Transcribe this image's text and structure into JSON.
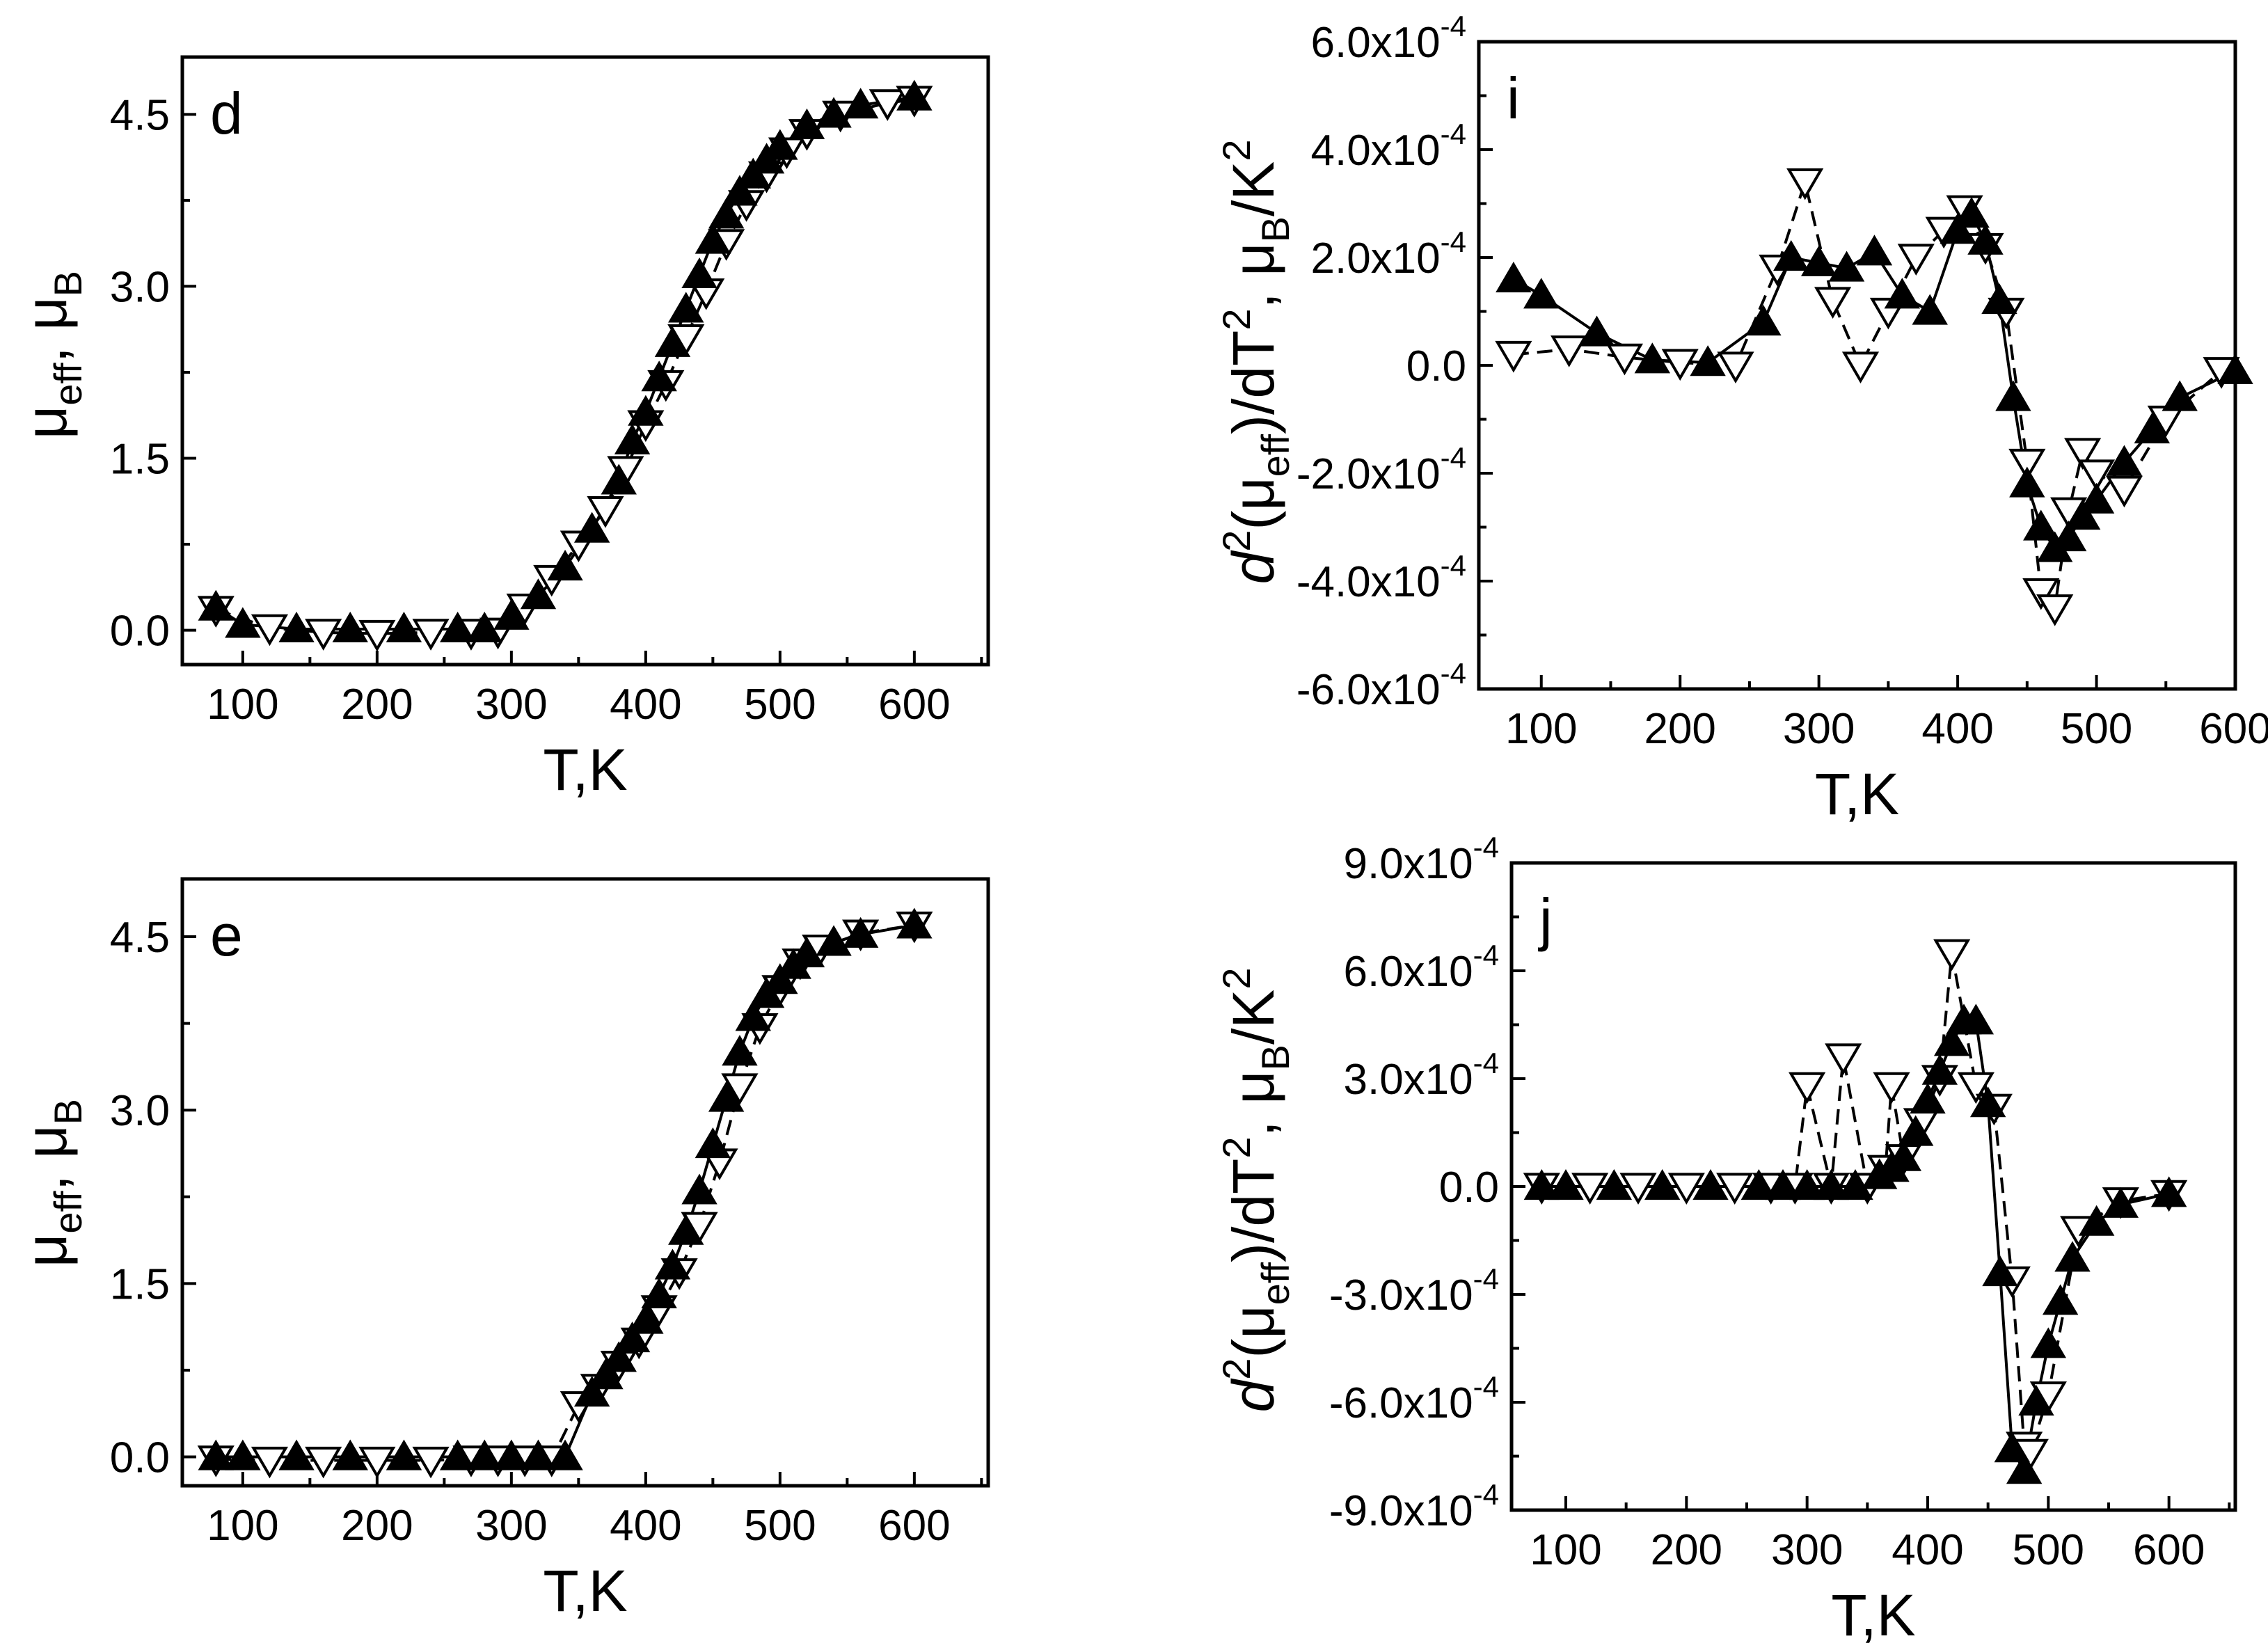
{
  "chart_data": [
    {
      "id": "d",
      "type": "scatter",
      "panel_label": "d",
      "xlabel": "T,K",
      "ylabel_main": "μ",
      "ylabel_sub1": "eff",
      "ylabel_mid": ", μ",
      "ylabel_sub2": "B",
      "xlim": [
        55,
        655
      ],
      "ylim": [
        -0.3,
        5.0
      ],
      "xticks": [
        100,
        200,
        300,
        400,
        500,
        600
      ],
      "yticks": [
        0.0,
        1.5,
        3.0,
        4.5
      ],
      "ytick_labels": [
        "0.0",
        "1.5",
        "3.0",
        "4.5"
      ],
      "series": [
        {
          "name": "filled-up-triangle",
          "x": [
            80,
            100,
            140,
            180,
            220,
            260,
            280,
            300,
            320,
            340,
            360,
            380,
            390,
            400,
            410,
            420,
            430,
            440,
            450,
            460,
            470,
            480,
            490,
            500,
            520,
            540,
            560,
            600
          ],
          "y": [
            0.2,
            0.05,
            0.01,
            0.01,
            0.01,
            0.01,
            0.01,
            0.12,
            0.3,
            0.55,
            0.88,
            1.3,
            1.65,
            1.9,
            2.2,
            2.5,
            2.8,
            3.1,
            3.4,
            3.62,
            3.82,
            3.97,
            4.1,
            4.22,
            4.4,
            4.5,
            4.58,
            4.65
          ]
        },
        {
          "name": "open-down-triangle",
          "x": [
            80,
            120,
            160,
            200,
            240,
            270,
            290,
            310,
            330,
            350,
            370,
            385,
            400,
            415,
            430,
            445,
            460,
            475,
            490,
            505,
            520,
            545,
            580,
            600
          ],
          "y": [
            0.18,
            0.02,
            -0.02,
            -0.03,
            -0.02,
            -0.02,
            -0.01,
            0.2,
            0.45,
            0.75,
            1.05,
            1.4,
            1.8,
            2.15,
            2.55,
            2.95,
            3.38,
            3.72,
            3.97,
            4.18,
            4.34,
            4.5,
            4.6,
            4.63
          ]
        }
      ]
    },
    {
      "id": "e",
      "type": "scatter",
      "panel_label": "e",
      "xlabel": "T,K",
      "ylabel_main": "μ",
      "ylabel_sub1": "eff",
      "ylabel_mid": ", μ",
      "ylabel_sub2": "B",
      "xlim": [
        55,
        655
      ],
      "ylim": [
        -0.25,
        5.0
      ],
      "xticks": [
        100,
        200,
        300,
        400,
        500,
        600
      ],
      "yticks": [
        0.0,
        1.5,
        3.0,
        4.5
      ],
      "ytick_labels": [
        "0.0",
        "1.5",
        "3.0",
        "4.5"
      ],
      "series": [
        {
          "name": "filled-up-triangle",
          "x": [
            80,
            100,
            140,
            180,
            220,
            260,
            280,
            300,
            320,
            340,
            360,
            370,
            380,
            390,
            400,
            410,
            420,
            430,
            440,
            450,
            460,
            470,
            480,
            490,
            500,
            510,
            520,
            540,
            560,
            600
          ],
          "y": [
            0.0,
            0.0,
            0.0,
            0.0,
            0.0,
            0.0,
            0.0,
            0.0,
            0.0,
            0.0,
            0.55,
            0.7,
            0.85,
            1.02,
            1.18,
            1.4,
            1.65,
            1.95,
            2.3,
            2.7,
            3.1,
            3.5,
            3.8,
            4.0,
            4.12,
            4.25,
            4.35,
            4.45,
            4.52,
            4.6
          ]
        },
        {
          "name": "open-down-triangle",
          "x": [
            80,
            120,
            160,
            200,
            240,
            270,
            290,
            310,
            330,
            350,
            365,
            380,
            395,
            410,
            425,
            440,
            455,
            470,
            485,
            500,
            515,
            530,
            560,
            600
          ],
          "y": [
            -0.02,
            -0.03,
            -0.03,
            -0.03,
            -0.03,
            -0.02,
            -0.02,
            -0.02,
            -0.02,
            0.45,
            0.6,
            0.8,
            1.0,
            1.28,
            1.6,
            2.0,
            2.55,
            3.2,
            3.72,
            4.05,
            4.28,
            4.4,
            4.53,
            4.6
          ]
        }
      ]
    },
    {
      "id": "i",
      "type": "scatter",
      "panel_label": "i",
      "xlabel": "T,K",
      "ylabel_parts": {
        "d": "d",
        "sup2a": "2",
        "open": "(μ",
        "sub_eff": "eff",
        "mid": ")/dT",
        "sup2b": "2",
        "mid2": ", μ",
        "sub_b": "B",
        "mid3": "/K",
        "sup2c": "2"
      },
      "xlim": [
        55,
        600
      ],
      "ylim": [
        -6.0,
        6.0
      ],
      "yunit_exp": "-4",
      "xticks": [
        100,
        200,
        300,
        400,
        500,
        600
      ],
      "yticks": [
        -6.0,
        -4.0,
        -2.0,
        0.0,
        2.0,
        4.0,
        6.0
      ],
      "ytick_labels": [
        "-6.0x10",
        "-4.0x10",
        "-2.0x10",
        "0.0",
        "2.0x10",
        "4.0x10",
        "6.0x10"
      ],
      "ytick_exps": [
        "-4",
        "-4",
        "-4",
        "",
        "-4",
        "-4",
        "-4"
      ],
      "series": [
        {
          "name": "filled-up-triangle",
          "x": [
            80,
            100,
            140,
            180,
            220,
            260,
            280,
            300,
            320,
            340,
            360,
            380,
            400,
            410,
            420,
            430,
            440,
            450,
            460,
            470,
            480,
            490,
            500,
            520,
            540,
            560,
            600
          ],
          "y": [
            1.6,
            1.3,
            0.6,
            0.1,
            0.05,
            0.8,
            2.0,
            1.9,
            1.8,
            2.1,
            1.3,
            1.0,
            2.5,
            2.8,
            2.3,
            1.2,
            -0.6,
            -2.2,
            -3.0,
            -3.4,
            -3.2,
            -2.8,
            -2.5,
            -1.8,
            -1.2,
            -0.6,
            -0.1
          ]
        },
        {
          "name": "open-down-triangle",
          "x": [
            80,
            120,
            160,
            200,
            240,
            270,
            290,
            310,
            330,
            350,
            370,
            390,
            405,
            420,
            435,
            450,
            460,
            470,
            480,
            490,
            500,
            520,
            550,
            590
          ],
          "y": [
            0.2,
            0.3,
            0.15,
            0.05,
            0.0,
            1.8,
            3.4,
            1.2,
            0.0,
            1.0,
            2.0,
            2.5,
            2.9,
            2.2,
            1.0,
            -1.8,
            -4.2,
            -4.5,
            -2.7,
            -1.6,
            -2.0,
            -2.3,
            -1.0,
            -0.1
          ]
        }
      ]
    },
    {
      "id": "j",
      "type": "scatter",
      "panel_label": "j",
      "xlabel": "T,K",
      "ylabel_parts": {
        "d": "d",
        "sup2a": "2",
        "open": "(μ",
        "sub_eff": "eff",
        "mid": ")/dT",
        "sup2b": "2",
        "mid2": ", μ",
        "sub_b": "B",
        "mid3": "/K",
        "sup2c": "2"
      },
      "xlim": [
        55,
        655
      ],
      "ylim": [
        -9.0,
        9.0
      ],
      "yunit_exp": "-4",
      "xticks": [
        100,
        200,
        300,
        400,
        500,
        600
      ],
      "yticks": [
        -9.0,
        -6.0,
        -3.0,
        0.0,
        3.0,
        6.0,
        9.0
      ],
      "ytick_labels": [
        "-9.0x10",
        "-6.0x10",
        "-3.0x10",
        "0.0",
        "3.0x10",
        "6.0x10",
        "9.0x10"
      ],
      "ytick_exps": [
        "-4",
        "-4",
        "-4",
        "",
        "-4",
        "-4",
        "-4"
      ],
      "series": [
        {
          "name": "filled-up-triangle",
          "x": [
            80,
            100,
            140,
            180,
            220,
            260,
            280,
            300,
            320,
            340,
            360,
            370,
            380,
            390,
            400,
            410,
            420,
            430,
            440,
            450,
            460,
            470,
            480,
            490,
            500,
            510,
            520,
            540,
            560,
            600
          ],
          "y": [
            0.0,
            0.0,
            0.0,
            0.0,
            0.0,
            0.0,
            0.0,
            0.0,
            0.0,
            0.0,
            0.3,
            0.5,
            0.8,
            1.5,
            2.4,
            3.2,
            4.0,
            4.6,
            4.6,
            2.3,
            -2.4,
            -7.3,
            -7.9,
            -6.0,
            -4.4,
            -3.2,
            -2.0,
            -1.0,
            -0.5,
            -0.2
          ]
        },
        {
          "name": "open-down-triangle",
          "x": [
            80,
            120,
            160,
            200,
            240,
            270,
            290,
            300,
            320,
            330,
            350,
            365,
            370,
            380,
            395,
            410,
            420,
            440,
            455,
            470,
            480,
            485,
            500,
            525,
            560,
            600
          ],
          "y": [
            0.0,
            0.0,
            0.0,
            0.0,
            0.0,
            0.0,
            0.0,
            2.8,
            0.0,
            3.6,
            0.0,
            0.5,
            2.8,
            0.8,
            1.8,
            3.0,
            6.5,
            2.8,
            2.2,
            -2.6,
            -7.2,
            -7.4,
            -5.8,
            -1.2,
            -0.4,
            -0.2
          ]
        }
      ]
    }
  ]
}
